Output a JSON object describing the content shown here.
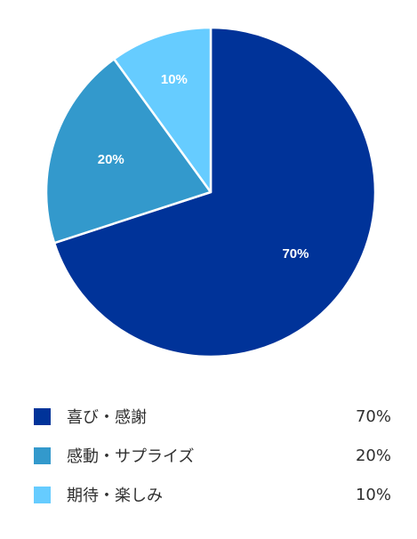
{
  "chart_data": {
    "type": "pie",
    "slices": [
      {
        "label": "喜び・感謝",
        "value": 70,
        "display": "70%",
        "color": "#003399"
      },
      {
        "label": "感動・サプライズ",
        "value": 20,
        "display": "20%",
        "color": "#3399cc"
      },
      {
        "label": "期待・楽しみ",
        "value": 10,
        "display": "10%",
        "color": "#66ccff"
      }
    ],
    "start_angle": "12 o'clock",
    "direction": "clockwise",
    "legend_position": "bottom"
  }
}
